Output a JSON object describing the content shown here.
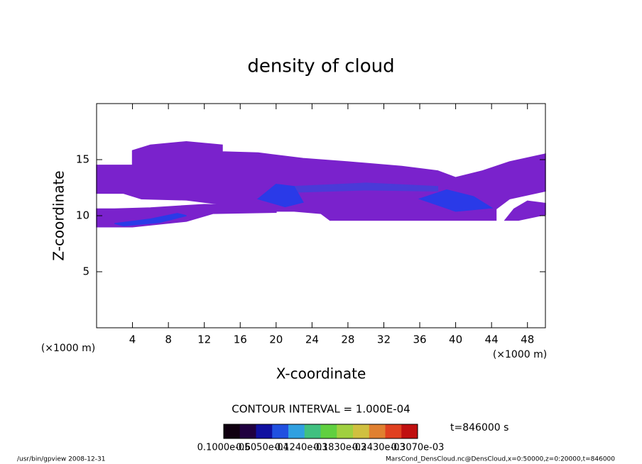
{
  "chart_data": {
    "type": "contour",
    "title": "density of cloud",
    "x_label": "X-coordinate",
    "y_label": "Z-coordinate",
    "x_unit": "(×1000 m)",
    "y_unit": "(×1000 m)",
    "xlim": [
      0,
      50
    ],
    "ylim": [
      0,
      20
    ],
    "xticks": [
      4,
      8,
      12,
      16,
      20,
      24,
      28,
      32,
      36,
      40,
      44,
      48
    ],
    "yticks": [
      5,
      10,
      15
    ],
    "contour_note": "CONTOUR INTERVAL = 1.000E-04",
    "time_label": "t=846000 s",
    "colorbar": {
      "colors": [
        "#100010",
        "#200040",
        "#1010a0",
        "#2050e0",
        "#30a0e0",
        "#40c080",
        "#60d040",
        "#a0d040",
        "#d0c040",
        "#e08030",
        "#e04020",
        "#c01010"
      ],
      "labels": [
        "0.1000e-05",
        "0.6050e-04",
        "0.1240e-03",
        "0.1830e-03",
        "0.2430e-03",
        "0.3070e-03"
      ]
    },
    "footer_left": "/usr/bin/gpview   2008-12-31",
    "footer_right": "MarsCond_DensCloud.nc@DensCloud,x=0:50000,z=0:20000,t=846000",
    "regions": [
      {
        "color": "#7a22cc",
        "points": [
          [
            0,
            14.5
          ],
          [
            4,
            14.5
          ],
          [
            4,
            15.8
          ],
          [
            6,
            16.3
          ],
          [
            10,
            16.6
          ],
          [
            14,
            16.3
          ],
          [
            14,
            15.7
          ],
          [
            18,
            15.6
          ],
          [
            23,
            15.1
          ],
          [
            28,
            14.8
          ],
          [
            34,
            14.4
          ],
          [
            38,
            14
          ],
          [
            40,
            13.4
          ],
          [
            43,
            14
          ],
          [
            46,
            14.8
          ],
          [
            50,
            15.5
          ],
          [
            50,
            12.2
          ],
          [
            46,
            11.5
          ],
          [
            44.5,
            10.6
          ],
          [
            44.5,
            9.6
          ],
          [
            40,
            9.6
          ],
          [
            34,
            9.6
          ],
          [
            26,
            9.6
          ],
          [
            25,
            10.2
          ],
          [
            22,
            10.4
          ],
          [
            14,
            10.4
          ],
          [
            14,
            11
          ],
          [
            10,
            11.4
          ],
          [
            5,
            11.5
          ],
          [
            3,
            12
          ],
          [
            0,
            12
          ]
        ]
      },
      {
        "color": "#7a22cc",
        "points": [
          [
            0,
            9
          ],
          [
            4,
            9
          ],
          [
            10,
            9.5
          ],
          [
            13,
            10.2
          ],
          [
            20,
            10.3
          ],
          [
            20,
            10.9
          ],
          [
            12,
            11
          ],
          [
            6,
            10.7
          ],
          [
            2,
            10.6
          ],
          [
            0,
            10.6
          ]
        ]
      },
      {
        "color": "#7a22cc",
        "points": [
          [
            45.5,
            9.6
          ],
          [
            47,
            9.6
          ],
          [
            50,
            10.1
          ],
          [
            50,
            11.1
          ],
          [
            48,
            11.3
          ],
          [
            46.5,
            10.6
          ]
        ]
      },
      {
        "color": "#4a3ad8",
        "points": [
          [
            22,
            12.6
          ],
          [
            30,
            12.9
          ],
          [
            38,
            12.6
          ],
          [
            38,
            12.2
          ],
          [
            30,
            12.3
          ],
          [
            22,
            12.1
          ]
        ]
      },
      {
        "color": "#2a3ae8",
        "points": [
          [
            18,
            11.5
          ],
          [
            20,
            12.8
          ],
          [
            22,
            12.6
          ],
          [
            23,
            11.2
          ],
          [
            21,
            10.8
          ]
        ]
      },
      {
        "color": "#2a3ae8",
        "points": [
          [
            36,
            11.5
          ],
          [
            39,
            12.3
          ],
          [
            42,
            11.7
          ],
          [
            44,
            10.7
          ],
          [
            40,
            10.4
          ]
        ]
      },
      {
        "color": "#2a3ae8",
        "points": [
          [
            2,
            9.3
          ],
          [
            6,
            9.7
          ],
          [
            9,
            10.2
          ],
          [
            10,
            10
          ],
          [
            7,
            9.4
          ],
          [
            3,
            9.1
          ]
        ]
      }
    ]
  }
}
